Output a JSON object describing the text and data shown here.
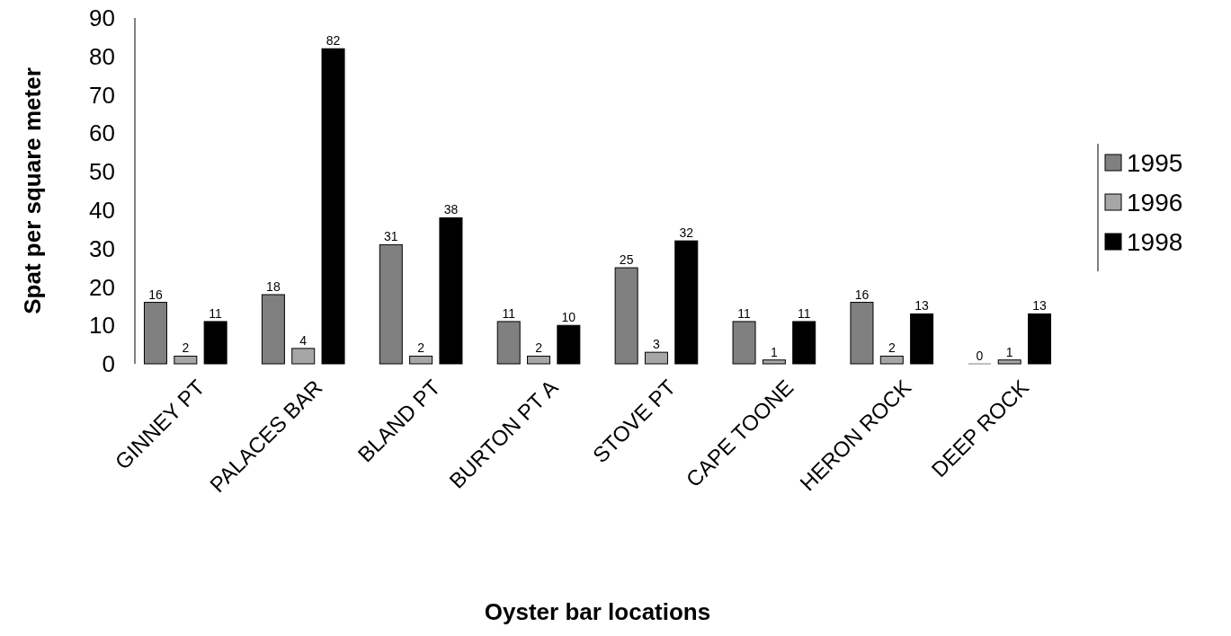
{
  "chart_data": {
    "type": "bar",
    "xlabel": "Oyster bar locations",
    "ylabel": "Spat per square meter",
    "categories": [
      "GINNEY PT",
      "PALACES BAR",
      "BLAND PT",
      "BURTON PT A",
      "STOVE PT",
      "CAPE TOONE",
      "HERON ROCK",
      "DEEP ROCK"
    ],
    "series": [
      {
        "name": "1995",
        "color": "#808080",
        "values": [
          16,
          18,
          31,
          11,
          25,
          11,
          16,
          0
        ]
      },
      {
        "name": "1996",
        "color": "#a6a6a6",
        "values": [
          2,
          4,
          2,
          2,
          3,
          1,
          2,
          1
        ]
      },
      {
        "name": "1998",
        "color": "#000000",
        "values": [
          11,
          82,
          38,
          10,
          32,
          11,
          13,
          13
        ]
      }
    ],
    "ylim": [
      0,
      90
    ],
    "yticks": [
      0,
      10,
      20,
      30,
      40,
      50,
      60,
      70,
      80,
      90
    ],
    "grid": false,
    "legend": "right",
    "data_labels": true
  }
}
